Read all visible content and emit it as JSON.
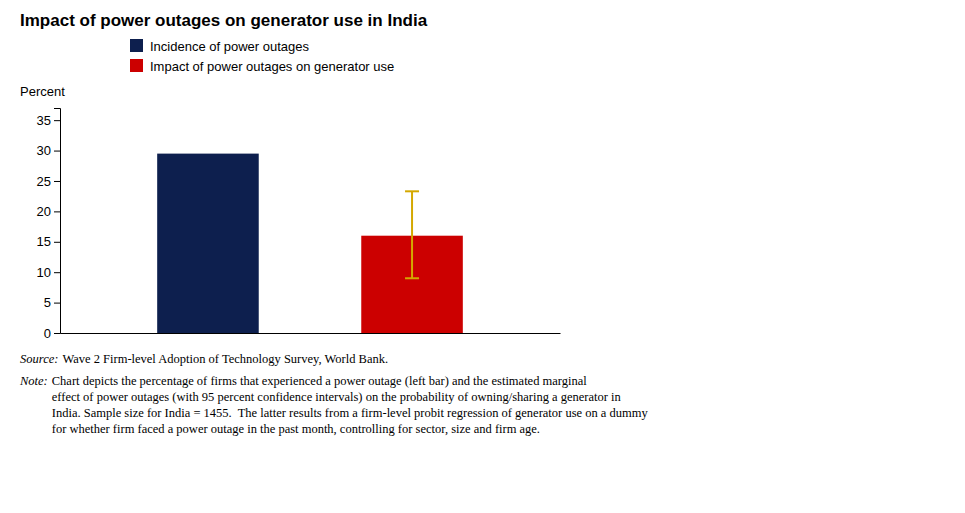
{
  "chart_data": {
    "type": "bar",
    "title": "Impact of power outages on generator use in India",
    "ylabel": "Percent",
    "categories": [
      null,
      null
    ],
    "series": [
      {
        "name": "Incidence of power outages",
        "color": "#0d1f4e",
        "values": [
          29.5,
          null
        ]
      },
      {
        "name": "Impact of power outages on generator use",
        "color": "#cc0000",
        "values": [
          null,
          16.0
        ],
        "error_minus": [
          null,
          7.0
        ],
        "error_plus": [
          null,
          7.3
        ],
        "error_color": "#d4a800"
      }
    ],
    "ylim": [
      0,
      37
    ],
    "yticks": [
      0,
      5,
      10,
      15,
      20,
      25,
      30,
      35
    ],
    "grid": false,
    "legend": "top",
    "notes": [
      {
        "label": "Source:",
        "lines": [
          "Wave 2 Firm-level Adoption of Technology Survey, World Bank."
        ]
      },
      {
        "label": "Note:",
        "lines": [
          "Chart depicts the percentage of firms that experienced a power outage (left bar) and the estimated marginal",
          "effect of power outages (with 95 percent confidence intervals) on the probability of owning/sharing a generator in",
          "India. Sample size for India = 1455.  The latter results from a firm-level probit regression of generator use on a dummy",
          "for whether firm faced a power outage in the past month, controlling for sector, size and firm age."
        ]
      }
    ]
  }
}
